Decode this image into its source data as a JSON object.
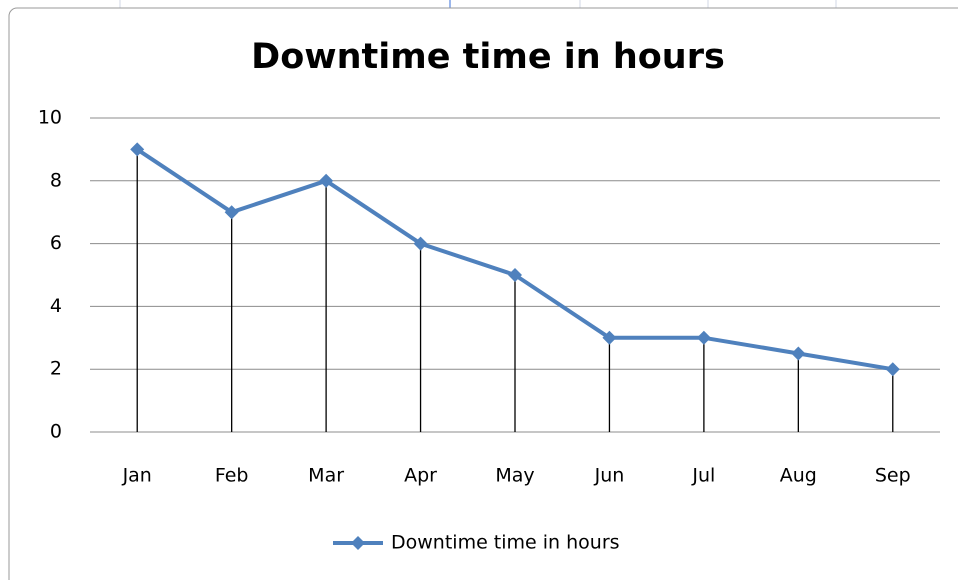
{
  "chart_data": {
    "type": "line",
    "title": "Downtime time in hours",
    "categories": [
      "Jan",
      "Feb",
      "Mar",
      "Apr",
      "May",
      "Jun",
      "Jul",
      "Aug",
      "Sep"
    ],
    "series": [
      {
        "name": "Downtime time in hours",
        "color": "#4f81bd",
        "values": [
          9,
          7,
          8,
          6,
          5,
          3,
          3,
          2.5,
          2
        ]
      }
    ],
    "ylim": [
      0,
      10
    ],
    "yticks": [
      0,
      2,
      4,
      6,
      8,
      10
    ],
    "grid": true,
    "drop_lines": true,
    "legend": "bottom"
  }
}
